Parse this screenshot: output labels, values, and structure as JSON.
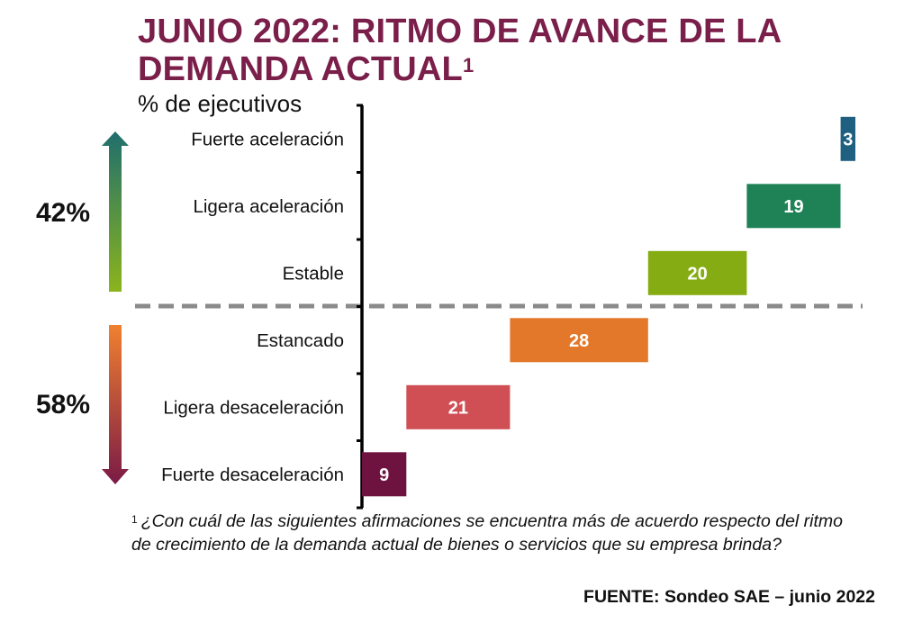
{
  "title_main": "JUNIO 2022: RITMO DE AVANCE DE LA DEMANDA ACTUAL",
  "title_sup": "1",
  "subtitle": "% de ejecutivos",
  "groups": {
    "up_pct": "42%",
    "down_pct": "58%",
    "up_arrow_colors": [
      "#1f6e6e",
      "#8bb41c"
    ],
    "down_arrow_colors": [
      "#f08030",
      "#7a1a46"
    ]
  },
  "footnote_marker": "1",
  "footnote": "¿Con cuál de las siguientes afirmaciones se encuentra más de acuerdo respecto del ritmo de crecimiento de la demanda actual de bienes o servicios que su empresa brinda?",
  "source": "FUENTE: Sondeo SAE – junio 2022",
  "chart_data": {
    "type": "bar",
    "orientation": "horizontal-waterfall",
    "categories": [
      "Fuerte aceleración",
      "Ligera aceleración",
      "Estable",
      "Estancado",
      "Ligera desaceleración",
      "Fuerte desaceleración"
    ],
    "values": [
      3,
      19,
      20,
      28,
      21,
      9
    ],
    "colors": [
      "#1f5f80",
      "#1e8256",
      "#86ac14",
      "#e3782a",
      "#cf4f55",
      "#6e1340"
    ],
    "xlim": [
      0,
      100
    ],
    "grid": false,
    "divider": "dashed line between Estable and Estancado"
  }
}
